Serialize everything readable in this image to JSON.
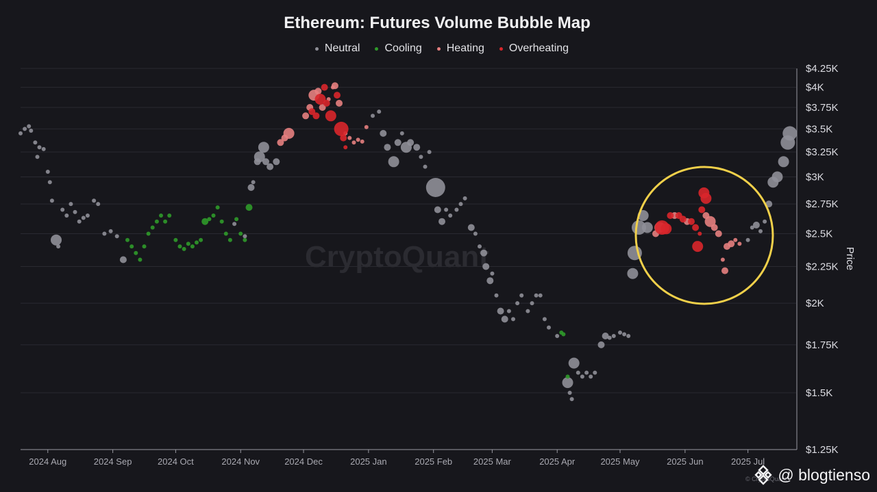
{
  "chart_data": {
    "type": "scatter",
    "title": "Ethereum: Futures Volume Bubble Map",
    "ylabel": "Price",
    "y_scale": "log",
    "ylim": [
      1250,
      4250
    ],
    "y_ticks": [
      "$4.25K",
      "$4K",
      "$3.75K",
      "$3.5K",
      "$3.25K",
      "$3K",
      "$2.75K",
      "$2.5K",
      "$2.25K",
      "$2K",
      "$1.75K",
      "$1.5K",
      "$1.25K"
    ],
    "y_tick_values": [
      4250,
      4000,
      3750,
      3500,
      3250,
      3000,
      2750,
      2500,
      2250,
      2000,
      1750,
      1500,
      1250
    ],
    "x_range": [
      "2024-07-19",
      "2025-07-24"
    ],
    "x_ticks": [
      "2024 Aug",
      "2024 Sep",
      "2024 Oct",
      "2024 Nov",
      "2024 Dec",
      "2025 Jan",
      "2025 Feb",
      "2025 Mar",
      "2025 Apr",
      "2025 May",
      "2025 Jun",
      "2025 Jul"
    ],
    "x_tick_dates": [
      "2024-08-01",
      "2024-09-01",
      "2024-10-01",
      "2024-11-01",
      "2024-12-01",
      "2025-01-01",
      "2025-02-01",
      "2025-03-01",
      "2025-04-01",
      "2025-05-01",
      "2025-06-01",
      "2025-07-01"
    ],
    "grid": true,
    "legend_position": "top-center",
    "colors": {
      "Neutral": "#8f8f98",
      "Cooling": "#2f9a2a",
      "Heating": "#e57f7f",
      "Overheating": "#d9262b",
      "highlight": "#f1d04a"
    },
    "series": [
      {
        "name": "Neutral",
        "points": [
          [
            "2024-07-19",
            3450,
            1
          ],
          [
            "2024-07-21",
            3500,
            1
          ],
          [
            "2024-07-23",
            3530,
            1
          ],
          [
            "2024-07-24",
            3480,
            1
          ],
          [
            "2024-07-26",
            3350,
            1
          ],
          [
            "2024-07-27",
            3200,
            1
          ],
          [
            "2024-07-28",
            3300,
            1
          ],
          [
            "2024-07-30",
            3280,
            1
          ],
          [
            "2024-08-01",
            3050,
            1
          ],
          [
            "2024-08-02",
            2950,
            1
          ],
          [
            "2024-08-03",
            2780,
            1
          ],
          [
            "2024-08-05",
            2450,
            3
          ],
          [
            "2024-08-06",
            2400,
            1
          ],
          [
            "2024-08-08",
            2700,
            1
          ],
          [
            "2024-08-10",
            2650,
            1
          ],
          [
            "2024-08-12",
            2750,
            1
          ],
          [
            "2024-08-14",
            2680,
            1
          ],
          [
            "2024-08-16",
            2600,
            1
          ],
          [
            "2024-08-18",
            2630,
            1
          ],
          [
            "2024-08-20",
            2650,
            1
          ],
          [
            "2024-08-23",
            2780,
            1
          ],
          [
            "2024-08-25",
            2750,
            1
          ],
          [
            "2024-08-28",
            2500,
            1
          ],
          [
            "2024-08-31",
            2520,
            1
          ],
          [
            "2024-09-03",
            2480,
            1
          ],
          [
            "2024-09-06",
            2300,
            2
          ],
          [
            "2024-10-29",
            2580,
            1
          ],
          [
            "2024-11-03",
            2480,
            1
          ],
          [
            "2024-11-06",
            2900,
            2
          ],
          [
            "2024-11-07",
            2950,
            1
          ],
          [
            "2024-11-09",
            3150,
            2
          ],
          [
            "2024-11-10",
            3200,
            3
          ],
          [
            "2024-11-12",
            3300,
            3
          ],
          [
            "2024-11-13",
            3150,
            2
          ],
          [
            "2024-11-15",
            3100,
            2
          ],
          [
            "2024-11-18",
            3150,
            2
          ],
          [
            "2025-01-03",
            3650,
            1
          ],
          [
            "2025-01-06",
            3700,
            1
          ],
          [
            "2025-01-08",
            3450,
            2
          ],
          [
            "2025-01-10",
            3300,
            2
          ],
          [
            "2025-01-13",
            3150,
            3
          ],
          [
            "2025-01-15",
            3350,
            2
          ],
          [
            "2025-01-17",
            3450,
            1
          ],
          [
            "2025-01-19",
            3300,
            3
          ],
          [
            "2025-01-21",
            3350,
            2
          ],
          [
            "2025-01-24",
            3300,
            2
          ],
          [
            "2025-01-26",
            3200,
            1
          ],
          [
            "2025-01-28",
            3100,
            1
          ],
          [
            "2025-01-30",
            3250,
            1
          ],
          [
            "2025-02-02",
            2900,
            5
          ],
          [
            "2025-02-03",
            2700,
            2
          ],
          [
            "2025-02-05",
            2600,
            2
          ],
          [
            "2025-02-07",
            2700,
            1
          ],
          [
            "2025-02-09",
            2650,
            1
          ],
          [
            "2025-02-12",
            2700,
            1
          ],
          [
            "2025-02-14",
            2750,
            1
          ],
          [
            "2025-02-16",
            2800,
            1
          ],
          [
            "2025-02-19",
            2550,
            2
          ],
          [
            "2025-02-21",
            2500,
            1
          ],
          [
            "2025-02-23",
            2400,
            1
          ],
          [
            "2025-02-25",
            2350,
            2
          ],
          [
            "2025-02-26",
            2250,
            2
          ],
          [
            "2025-02-28",
            2150,
            2
          ],
          [
            "2025-03-01",
            2200,
            1
          ],
          [
            "2025-03-03",
            2050,
            1
          ],
          [
            "2025-03-05",
            1950,
            2
          ],
          [
            "2025-03-07",
            1900,
            2
          ],
          [
            "2025-03-09",
            1950,
            1
          ],
          [
            "2025-03-11",
            1900,
            1
          ],
          [
            "2025-03-13",
            2000,
            1
          ],
          [
            "2025-03-15",
            2050,
            1
          ],
          [
            "2025-03-18",
            1950,
            1
          ],
          [
            "2025-03-20",
            2000,
            1
          ],
          [
            "2025-03-22",
            2050,
            1
          ],
          [
            "2025-03-24",
            2050,
            1
          ],
          [
            "2025-03-26",
            1900,
            1
          ],
          [
            "2025-03-28",
            1850,
            1
          ],
          [
            "2025-04-01",
            1800,
            1
          ],
          [
            "2025-04-06",
            1550,
            3
          ],
          [
            "2025-04-07",
            1500,
            1
          ],
          [
            "2025-04-08",
            1470,
            1
          ],
          [
            "2025-04-09",
            1650,
            3
          ],
          [
            "2025-04-11",
            1600,
            1
          ],
          [
            "2025-04-13",
            1580,
            1
          ],
          [
            "2025-04-15",
            1600,
            1
          ],
          [
            "2025-04-17",
            1580,
            1
          ],
          [
            "2025-04-19",
            1600,
            1
          ],
          [
            "2025-04-22",
            1750,
            2
          ],
          [
            "2025-04-24",
            1800,
            2
          ],
          [
            "2025-04-26",
            1790,
            1
          ],
          [
            "2025-04-28",
            1800,
            1
          ],
          [
            "2025-05-01",
            1820,
            1
          ],
          [
            "2025-05-03",
            1810,
            1
          ],
          [
            "2025-05-05",
            1800,
            1
          ],
          [
            "2025-05-07",
            2200,
            3
          ],
          [
            "2025-05-08",
            2350,
            4
          ],
          [
            "2025-05-10",
            2550,
            4
          ],
          [
            "2025-05-12",
            2650,
            3
          ],
          [
            "2025-05-14",
            2550,
            3
          ],
          [
            "2025-07-01",
            2450,
            1
          ],
          [
            "2025-07-03",
            2550,
            1
          ],
          [
            "2025-07-05",
            2570,
            2
          ],
          [
            "2025-07-07",
            2520,
            1
          ],
          [
            "2025-07-09",
            2600,
            1
          ],
          [
            "2025-07-11",
            2750,
            2
          ],
          [
            "2025-07-13",
            2950,
            3
          ],
          [
            "2025-07-15",
            3000,
            3
          ],
          [
            "2025-07-18",
            3150,
            3
          ],
          [
            "2025-07-20",
            3350,
            4
          ],
          [
            "2025-07-21",
            3450,
            4
          ]
        ]
      },
      {
        "name": "Cooling",
        "points": [
          [
            "2024-09-08",
            2450,
            1
          ],
          [
            "2024-09-10",
            2400,
            1
          ],
          [
            "2024-09-12",
            2350,
            1
          ],
          [
            "2024-09-14",
            2300,
            1
          ],
          [
            "2024-09-16",
            2400,
            1
          ],
          [
            "2024-09-18",
            2500,
            1
          ],
          [
            "2024-09-20",
            2550,
            1
          ],
          [
            "2024-09-22",
            2600,
            1
          ],
          [
            "2024-09-24",
            2650,
            1
          ],
          [
            "2024-09-26",
            2600,
            1
          ],
          [
            "2024-09-28",
            2650,
            1
          ],
          [
            "2024-10-01",
            2450,
            1
          ],
          [
            "2024-10-03",
            2400,
            1
          ],
          [
            "2024-10-05",
            2380,
            1
          ],
          [
            "2024-10-07",
            2420,
            1
          ],
          [
            "2024-10-09",
            2400,
            1
          ],
          [
            "2024-10-11",
            2430,
            1
          ],
          [
            "2024-10-13",
            2450,
            1
          ],
          [
            "2024-10-15",
            2600,
            2
          ],
          [
            "2024-10-17",
            2620,
            1
          ],
          [
            "2024-10-19",
            2650,
            1
          ],
          [
            "2024-10-21",
            2720,
            1
          ],
          [
            "2024-10-23",
            2600,
            1
          ],
          [
            "2024-10-25",
            2500,
            1
          ],
          [
            "2024-10-27",
            2450,
            1
          ],
          [
            "2024-10-30",
            2620,
            1
          ],
          [
            "2024-11-01",
            2500,
            1
          ],
          [
            "2024-11-03",
            2450,
            1
          ],
          [
            "2024-11-05",
            2720,
            2
          ],
          [
            "2025-04-03",
            1820,
            1
          ],
          [
            "2025-04-04",
            1810,
            1
          ],
          [
            "2025-04-06",
            1580,
            1
          ]
        ]
      },
      {
        "name": "Heating",
        "points": [
          [
            "2024-11-20",
            3350,
            2
          ],
          [
            "2024-11-22",
            3400,
            2
          ],
          [
            "2024-11-24",
            3450,
            3
          ],
          [
            "2024-12-02",
            3650,
            2
          ],
          [
            "2024-12-04",
            3750,
            2
          ],
          [
            "2024-12-06",
            3900,
            3
          ],
          [
            "2024-12-08",
            3950,
            2
          ],
          [
            "2024-12-10",
            3750,
            2
          ],
          [
            "2024-12-13",
            3850,
            1
          ],
          [
            "2024-12-15",
            4000,
            1
          ],
          [
            "2024-12-16",
            4020,
            2
          ],
          [
            "2024-12-18",
            3800,
            2
          ],
          [
            "2024-12-21",
            3450,
            1
          ],
          [
            "2024-12-23",
            3400,
            1
          ],
          [
            "2024-12-25",
            3350,
            1
          ],
          [
            "2024-12-27",
            3380,
            1
          ],
          [
            "2024-12-29",
            3360,
            1
          ],
          [
            "2024-12-31",
            3520,
            1
          ],
          [
            "2025-05-18",
            2500,
            2
          ],
          [
            "2025-05-20",
            2550,
            3
          ],
          [
            "2025-05-27",
            2650,
            2
          ],
          [
            "2025-06-02",
            2600,
            2
          ],
          [
            "2025-06-11",
            2650,
            2
          ],
          [
            "2025-06-13",
            2600,
            3
          ],
          [
            "2025-06-15",
            2550,
            2
          ],
          [
            "2025-06-17",
            2500,
            2
          ],
          [
            "2025-06-19",
            2300,
            1
          ],
          [
            "2025-06-20",
            2220,
            2
          ],
          [
            "2025-06-21",
            2400,
            2
          ],
          [
            "2025-06-23",
            2420,
            2
          ],
          [
            "2025-06-25",
            2450,
            1
          ],
          [
            "2025-06-27",
            2420,
            1
          ]
        ]
      },
      {
        "name": "Overheating",
        "points": [
          [
            "2024-12-05",
            3700,
            2
          ],
          [
            "2024-12-07",
            3650,
            2
          ],
          [
            "2024-12-09",
            3850,
            3
          ],
          [
            "2024-12-11",
            4000,
            2
          ],
          [
            "2024-12-12",
            3800,
            2
          ],
          [
            "2024-12-14",
            3650,
            3
          ],
          [
            "2024-12-17",
            3900,
            2
          ],
          [
            "2024-12-19",
            3500,
            4
          ],
          [
            "2024-12-20",
            3400,
            2
          ],
          [
            "2024-12-21",
            3300,
            1
          ],
          [
            "2025-05-21",
            2550,
            4
          ],
          [
            "2025-05-23",
            2540,
            3
          ],
          [
            "2025-05-25",
            2650,
            2
          ],
          [
            "2025-05-29",
            2650,
            2
          ],
          [
            "2025-05-31",
            2620,
            2
          ],
          [
            "2025-06-04",
            2600,
            2
          ],
          [
            "2025-06-06",
            2550,
            2
          ],
          [
            "2025-06-07",
            2400,
            3
          ],
          [
            "2025-06-08",
            2500,
            1
          ],
          [
            "2025-06-09",
            2700,
            2
          ],
          [
            "2025-06-10",
            2850,
            3
          ],
          [
            "2025-06-11",
            2800,
            3
          ]
        ]
      }
    ],
    "annotations": [
      {
        "type": "circle",
        "color": "#f1d04a"
      }
    ]
  },
  "legend": {
    "items": [
      {
        "label": "Neutral",
        "color": "#8f8f98"
      },
      {
        "label": "Cooling",
        "color": "#2f9a2a"
      },
      {
        "label": "Heating",
        "color": "#e57f7f"
      },
      {
        "label": "Overheating",
        "color": "#d9262b"
      }
    ]
  },
  "watermark": "CryptoQuant",
  "credit": {
    "handle": "@ blogtienso",
    "fine_print": "© CryptoQuant"
  }
}
